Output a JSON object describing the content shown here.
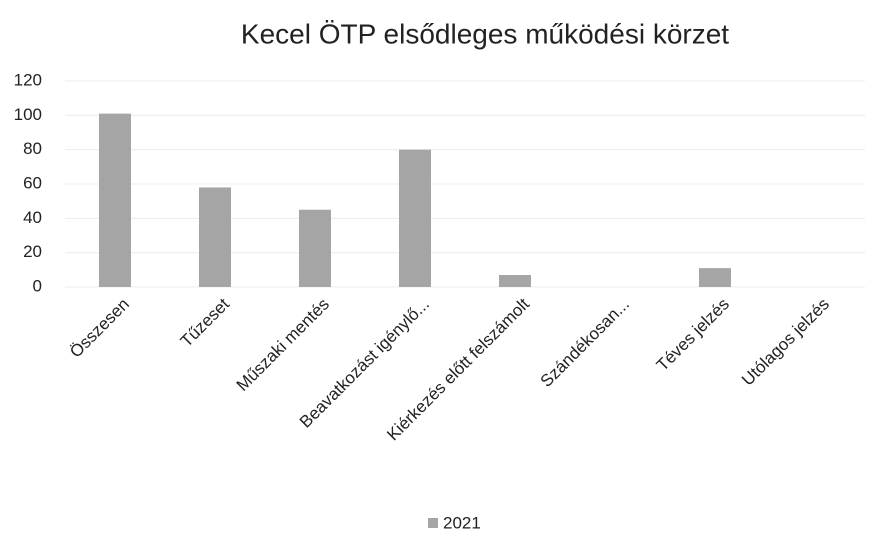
{
  "chart_data": {
    "type": "bar",
    "title": "Kecel ÖTP elsődleges működési körzet",
    "categories": [
      "Összesen",
      "Tűzeset",
      "Műszaki mentés",
      "Beavatkozást igénylő...",
      "Kiérkezés előtt felszámolt",
      "Szándékosan...",
      "Téves jelzés",
      "Utólagos jelzés"
    ],
    "series": [
      {
        "name": "2021",
        "color": "#a5a5a5",
        "values": [
          101,
          58,
          45,
          80,
          7,
          0,
          11,
          0
        ]
      }
    ],
    "ylim": [
      0,
      120
    ],
    "yticks": [
      0,
      20,
      40,
      60,
      80,
      100,
      120
    ],
    "grid": true,
    "legend": "bottom"
  }
}
